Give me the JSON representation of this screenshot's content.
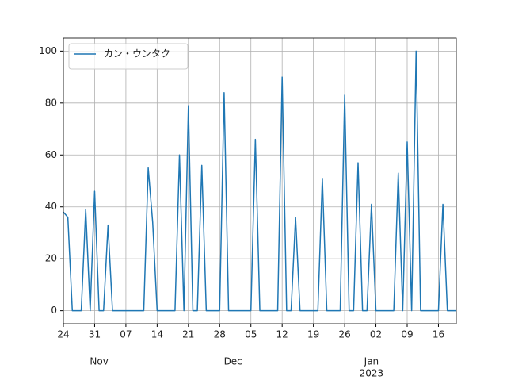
{
  "chart_data": {
    "type": "line",
    "series": [
      {
        "name": "カン・ウンタク",
        "color": "#1f77b4",
        "values": [
          38,
          36,
          0,
          0,
          0,
          39,
          0,
          46,
          0,
          0,
          33,
          0,
          0,
          0,
          0,
          0,
          0,
          0,
          0,
          55,
          34,
          0,
          0,
          0,
          0,
          0,
          60,
          0,
          79,
          0,
          0,
          56,
          0,
          0,
          0,
          0,
          84,
          0,
          0,
          0,
          0,
          0,
          0,
          66,
          0,
          0,
          0,
          0,
          0,
          90,
          0,
          0,
          36,
          0,
          0,
          0,
          0,
          0,
          51,
          0,
          0,
          0,
          0,
          83,
          0,
          0,
          57,
          0,
          0,
          41,
          0,
          0,
          0,
          0,
          0,
          53,
          0,
          65,
          0,
          100,
          0,
          0,
          0,
          0,
          0,
          41,
          0,
          0,
          0
        ]
      }
    ],
    "x": [
      0,
      1,
      2,
      3,
      4,
      5,
      6,
      7,
      8,
      9,
      10,
      11,
      12,
      13,
      14,
      15,
      16,
      17,
      18,
      19,
      20,
      21,
      22,
      23,
      24,
      25,
      26,
      27,
      28,
      29,
      30,
      31,
      32,
      33,
      34,
      35,
      36,
      37,
      38,
      39,
      40,
      41,
      42,
      43,
      44,
      45,
      46,
      47,
      48,
      49,
      50,
      51,
      52,
      53,
      54,
      55,
      56,
      57,
      58,
      59,
      60,
      61,
      62,
      63,
      64,
      65,
      66,
      67,
      68,
      69,
      70,
      71,
      72,
      73,
      74,
      75,
      76,
      77,
      78,
      79,
      80,
      81,
      82,
      83,
      84,
      85,
      86,
      87,
      88
    ],
    "xlim": [
      0,
      88
    ],
    "xticks": [
      {
        "value": 0,
        "label": "24"
      },
      {
        "value": 7,
        "label": "31"
      },
      {
        "value": 14,
        "label": "07"
      },
      {
        "value": 21,
        "label": "14"
      },
      {
        "value": 28,
        "label": "21"
      },
      {
        "value": 35,
        "label": "28"
      },
      {
        "value": 42,
        "label": "05"
      },
      {
        "value": 49,
        "label": "12"
      },
      {
        "value": 56,
        "label": "19"
      },
      {
        "value": 63,
        "label": "26"
      },
      {
        "value": 70,
        "label": "02"
      },
      {
        "value": 77,
        "label": "09"
      },
      {
        "value": 84,
        "label": "16"
      }
    ],
    "xminor": [
      {
        "value": 8,
        "label": "Nov"
      },
      {
        "value": 38,
        "label": "Dec"
      },
      {
        "value": 69,
        "label": "Jan",
        "sublabel": "2023"
      }
    ],
    "ylim": [
      -5,
      105
    ],
    "yticks": [
      0,
      20,
      40,
      60,
      80,
      100
    ],
    "grid": true,
    "legend": "upper left"
  }
}
